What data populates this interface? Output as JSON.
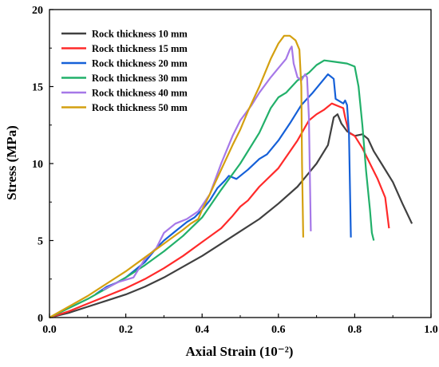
{
  "chart_data": {
    "type": "line",
    "title": "",
    "xlabel": "Axial Strain (10⁻²)",
    "ylabel": "Stress (MPa)",
    "xlim": [
      0,
      1.0
    ],
    "ylim": [
      0,
      20
    ],
    "x_ticks": [
      0.0,
      0.2,
      0.4,
      0.6,
      0.8,
      1.0
    ],
    "x_tick_labels": [
      "0.0",
      "0.2",
      "0.4",
      "0.6",
      "0.8",
      "1.0"
    ],
    "y_ticks": [
      0,
      5,
      10,
      15,
      20
    ],
    "y_tick_labels": [
      "0",
      "5",
      "10",
      "15",
      "20"
    ],
    "grid": false,
    "legend_position": "top-left",
    "series": [
      {
        "name": "Rock thickness 10 mm",
        "color": "#404040",
        "points": [
          [
            0,
            0
          ],
          [
            0.05,
            0.3
          ],
          [
            0.1,
            0.7
          ],
          [
            0.15,
            1.1
          ],
          [
            0.2,
            1.5
          ],
          [
            0.25,
            2.0
          ],
          [
            0.3,
            2.6
          ],
          [
            0.35,
            3.3
          ],
          [
            0.4,
            4.0
          ],
          [
            0.45,
            4.8
          ],
          [
            0.5,
            5.6
          ],
          [
            0.55,
            6.4
          ],
          [
            0.6,
            7.4
          ],
          [
            0.65,
            8.5
          ],
          [
            0.7,
            10.0
          ],
          [
            0.73,
            11.2
          ],
          [
            0.745,
            13.0
          ],
          [
            0.755,
            13.2
          ],
          [
            0.765,
            12.6
          ],
          [
            0.78,
            12.1
          ],
          [
            0.8,
            11.8
          ],
          [
            0.82,
            11.9
          ],
          [
            0.835,
            11.6
          ],
          [
            0.85,
            10.8
          ],
          [
            0.87,
            10.0
          ],
          [
            0.9,
            8.8
          ],
          [
            0.925,
            7.4
          ],
          [
            0.95,
            6.1
          ]
        ]
      },
      {
        "name": "Rock thickness 15 mm",
        "color": "#ff2a2a",
        "points": [
          [
            0,
            0
          ],
          [
            0.05,
            0.4
          ],
          [
            0.1,
            0.9
          ],
          [
            0.15,
            1.4
          ],
          [
            0.2,
            1.9
          ],
          [
            0.25,
            2.5
          ],
          [
            0.3,
            3.2
          ],
          [
            0.35,
            4.0
          ],
          [
            0.4,
            4.9
          ],
          [
            0.45,
            5.8
          ],
          [
            0.48,
            6.6
          ],
          [
            0.5,
            7.2
          ],
          [
            0.52,
            7.6
          ],
          [
            0.55,
            8.5
          ],
          [
            0.6,
            9.7
          ],
          [
            0.65,
            11.5
          ],
          [
            0.68,
            12.8
          ],
          [
            0.7,
            13.2
          ],
          [
            0.72,
            13.5
          ],
          [
            0.74,
            13.9
          ],
          [
            0.76,
            13.7
          ],
          [
            0.77,
            13.6
          ],
          [
            0.775,
            13.0
          ],
          [
            0.785,
            12.0
          ],
          [
            0.8,
            11.8
          ],
          [
            0.82,
            11.0
          ],
          [
            0.84,
            10.0
          ],
          [
            0.86,
            9.0
          ],
          [
            0.88,
            7.8
          ],
          [
            0.89,
            5.8
          ]
        ]
      },
      {
        "name": "Rock thickness 20 mm",
        "color": "#1560d8",
        "points": [
          [
            0.12,
            1.5
          ],
          [
            0.15,
            2.0
          ],
          [
            0.18,
            2.3
          ],
          [
            0.2,
            2.6
          ],
          [
            0.22,
            3.0
          ],
          [
            0.25,
            3.6
          ],
          [
            0.28,
            4.5
          ],
          [
            0.3,
            5.0
          ],
          [
            0.33,
            5.6
          ],
          [
            0.36,
            6.2
          ],
          [
            0.38,
            6.5
          ],
          [
            0.4,
            7.0
          ],
          [
            0.42,
            7.6
          ],
          [
            0.44,
            8.4
          ],
          [
            0.46,
            8.9
          ],
          [
            0.47,
            9.2
          ],
          [
            0.49,
            9.0
          ],
          [
            0.52,
            9.6
          ],
          [
            0.55,
            10.3
          ],
          [
            0.57,
            10.6
          ],
          [
            0.6,
            11.5
          ],
          [
            0.63,
            12.6
          ],
          [
            0.66,
            13.8
          ],
          [
            0.69,
            14.6
          ],
          [
            0.71,
            15.2
          ],
          [
            0.73,
            15.8
          ],
          [
            0.745,
            15.5
          ],
          [
            0.75,
            14.2
          ],
          [
            0.77,
            13.9
          ],
          [
            0.775,
            14.1
          ],
          [
            0.78,
            13.8
          ],
          [
            0.785,
            12.0
          ],
          [
            0.79,
            5.2
          ]
        ]
      },
      {
        "name": "Rock thickness 30 mm",
        "color": "#22b06a",
        "points": [
          [
            0,
            0
          ],
          [
            0.05,
            0.6
          ],
          [
            0.1,
            1.2
          ],
          [
            0.15,
            1.9
          ],
          [
            0.2,
            2.6
          ],
          [
            0.25,
            3.4
          ],
          [
            0.3,
            4.3
          ],
          [
            0.35,
            5.3
          ],
          [
            0.4,
            6.5
          ],
          [
            0.45,
            8.3
          ],
          [
            0.5,
            10.0
          ],
          [
            0.55,
            12.0
          ],
          [
            0.58,
            13.6
          ],
          [
            0.6,
            14.3
          ],
          [
            0.62,
            14.6
          ],
          [
            0.65,
            15.4
          ],
          [
            0.68,
            15.9
          ],
          [
            0.7,
            16.4
          ],
          [
            0.72,
            16.7
          ],
          [
            0.75,
            16.6
          ],
          [
            0.78,
            16.5
          ],
          [
            0.8,
            16.3
          ],
          [
            0.81,
            15.0
          ],
          [
            0.82,
            12.5
          ],
          [
            0.83,
            9.5
          ],
          [
            0.84,
            7.0
          ],
          [
            0.845,
            5.5
          ],
          [
            0.85,
            5.0
          ]
        ]
      },
      {
        "name": "Rock thickness 40 mm",
        "color": "#a678e8",
        "points": [
          [
            0.14,
            1.8
          ],
          [
            0.18,
            2.3
          ],
          [
            0.22,
            2.6
          ],
          [
            0.25,
            3.8
          ],
          [
            0.28,
            4.5
          ],
          [
            0.3,
            5.5
          ],
          [
            0.33,
            6.1
          ],
          [
            0.36,
            6.4
          ],
          [
            0.39,
            6.9
          ],
          [
            0.42,
            8.0
          ],
          [
            0.45,
            10.0
          ],
          [
            0.48,
            11.8
          ],
          [
            0.5,
            12.8
          ],
          [
            0.53,
            13.8
          ],
          [
            0.55,
            14.6
          ],
          [
            0.58,
            15.6
          ],
          [
            0.6,
            16.2
          ],
          [
            0.62,
            16.8
          ],
          [
            0.63,
            17.4
          ],
          [
            0.635,
            17.6
          ],
          [
            0.64,
            16.5
          ],
          [
            0.65,
            15.6
          ],
          [
            0.66,
            15.4
          ],
          [
            0.67,
            15.8
          ],
          [
            0.675,
            15.6
          ],
          [
            0.68,
            13.0
          ],
          [
            0.685,
            5.6
          ]
        ]
      },
      {
        "name": "Rock thickness 50 mm",
        "color": "#d4a010",
        "points": [
          [
            0,
            0
          ],
          [
            0.05,
            0.7
          ],
          [
            0.1,
            1.4
          ],
          [
            0.15,
            2.2
          ],
          [
            0.2,
            3.0
          ],
          [
            0.25,
            3.9
          ],
          [
            0.3,
            4.8
          ],
          [
            0.35,
            5.7
          ],
          [
            0.37,
            6.1
          ],
          [
            0.39,
            6.4
          ],
          [
            0.4,
            7.0
          ],
          [
            0.42,
            8.0
          ],
          [
            0.45,
            9.6
          ],
          [
            0.48,
            11.2
          ],
          [
            0.5,
            12.2
          ],
          [
            0.52,
            13.4
          ],
          [
            0.55,
            15.0
          ],
          [
            0.58,
            16.8
          ],
          [
            0.6,
            17.8
          ],
          [
            0.615,
            18.3
          ],
          [
            0.63,
            18.3
          ],
          [
            0.645,
            18.0
          ],
          [
            0.655,
            17.4
          ],
          [
            0.66,
            15.0
          ],
          [
            0.662,
            10.0
          ],
          [
            0.665,
            5.2
          ]
        ]
      }
    ]
  }
}
